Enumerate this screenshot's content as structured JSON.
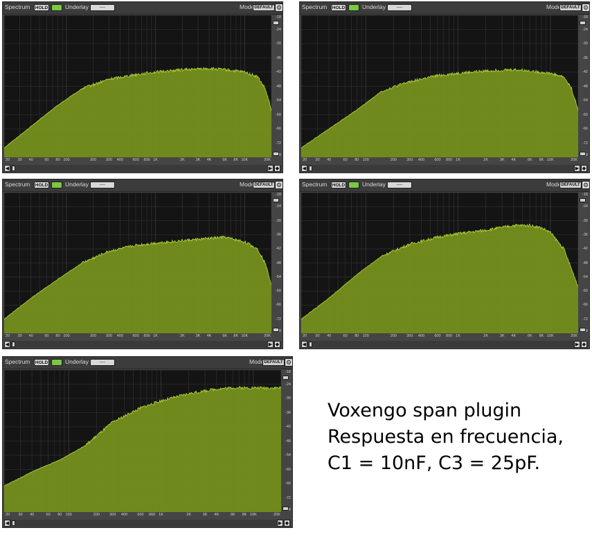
{
  "toolbar": {
    "title": "Spectrum",
    "hold_label": "HOLD",
    "underlay_label": "Underlay",
    "underlay_value": "----",
    "mode_label": "Mode",
    "mode_value": "DEFAULT",
    "gear_glyph": "⚙",
    "icons": [
      "hold-led-icon",
      "gear-icon"
    ]
  },
  "y_ticks": [
    "-18",
    "-24",
    "-30",
    "-36",
    "-42",
    "-48",
    "-54",
    "-60",
    "-66",
    "-72",
    "-78"
  ],
  "x_ticks": [
    "20",
    "30",
    "40",
    "60",
    "80",
    "100",
    "200",
    "300",
    "400",
    "600",
    "800",
    "1K",
    "2K",
    "3K",
    "4K",
    "6K",
    "8K",
    "10K",
    "20K"
  ],
  "scroll_glyphs": {
    "left": "◀",
    "right": "▶",
    "both": "◆"
  },
  "colors": {
    "fill": "#76921e",
    "edge": "#b9dd3a",
    "plot_bg": "#141414",
    "grid": "#2d2d2d"
  },
  "chart_data": [
    {
      "type": "area",
      "x_scale": "log",
      "xlim": [
        20,
        20000
      ],
      "ylim": [
        -78,
        -18
      ],
      "grid": true,
      "x": [
        20,
        40,
        80,
        150,
        300,
        600,
        1000,
        2000,
        4000,
        6000,
        10000,
        14000,
        17000,
        20000
      ],
      "y": [
        -74,
        -65,
        -56,
        -49,
        -45,
        -43,
        -42,
        -41,
        -40.5,
        -41,
        -42,
        -44,
        -49,
        -58
      ]
    },
    {
      "type": "area",
      "x_scale": "log",
      "xlim": [
        20,
        20000
      ],
      "ylim": [
        -78,
        -18
      ],
      "grid": true,
      "x": [
        20,
        40,
        80,
        150,
        300,
        600,
        1000,
        2000,
        4000,
        6000,
        10000,
        14000,
        17000,
        20000
      ],
      "y": [
        -74,
        -66,
        -58,
        -50,
        -46,
        -43.5,
        -42.5,
        -41.5,
        -41,
        -41.5,
        -42.5,
        -44,
        -49,
        -58
      ]
    },
    {
      "type": "area",
      "x_scale": "log",
      "xlim": [
        20,
        20000
      ],
      "ylim": [
        -78,
        -18
      ],
      "grid": true,
      "x": [
        20,
        40,
        80,
        150,
        300,
        600,
        1000,
        2000,
        4000,
        6000,
        10000,
        14000,
        17000,
        20000
      ],
      "y": [
        -72,
        -63,
        -55,
        -48,
        -43,
        -40.5,
        -39.5,
        -38.5,
        -37.5,
        -37,
        -39,
        -42,
        -48,
        -57
      ]
    },
    {
      "type": "area",
      "x_scale": "log",
      "xlim": [
        20,
        20000
      ],
      "ylim": [
        -78,
        -18
      ],
      "grid": true,
      "x": [
        20,
        40,
        80,
        150,
        300,
        600,
        1000,
        2000,
        4000,
        6000,
        8000,
        10000,
        14000,
        20000
      ],
      "y": [
        -72,
        -63,
        -53,
        -45,
        -40,
        -37,
        -35.5,
        -34,
        -32,
        -32,
        -33,
        -35,
        -42,
        -58
      ]
    },
    {
      "type": "area",
      "x_scale": "log",
      "xlim": [
        20,
        20000
      ],
      "ylim": [
        -78,
        -18
      ],
      "grid": true,
      "x": [
        20,
        40,
        80,
        150,
        300,
        600,
        1000,
        2000,
        4000,
        6000,
        10000,
        14000,
        17000,
        20000
      ],
      "y": [
        -67,
        -61,
        -56,
        -50,
        -40,
        -34,
        -31,
        -28,
        -26,
        -25.5,
        -25.5,
        -25.5,
        -25.5,
        -25.5
      ]
    }
  ],
  "caption": {
    "line1": "Voxengo span plugin",
    "line2": "Respuesta en frecuencia,",
    "line3": "C1 = 10nF, C3 = 25pF."
  }
}
